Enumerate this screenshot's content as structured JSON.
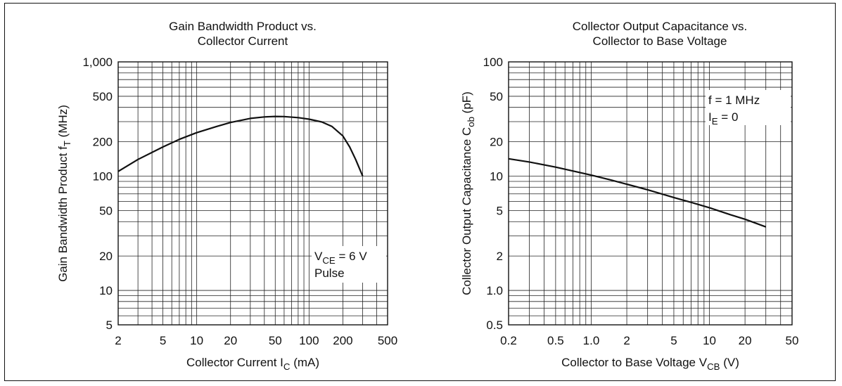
{
  "chart_data": [
    {
      "type": "line",
      "title": [
        "Gain Bandwidth Product vs.",
        "Collector Current"
      ],
      "xlabel": {
        "text": "Collector Current  I",
        "sub": "C",
        "tail": "  (mA)"
      },
      "ylabel": {
        "text": "Gain Bandwidth Product  f",
        "sub": "T",
        "tail": "  (MHz)"
      },
      "x_scale": "log",
      "y_scale": "log",
      "xlim": [
        2,
        500
      ],
      "ylim": [
        5,
        1000
      ],
      "x_ticks": [
        {
          "v": 2,
          "label": "2"
        },
        {
          "v": 5,
          "label": "5"
        },
        {
          "v": 10,
          "label": "10"
        },
        {
          "v": 20,
          "label": "20"
        },
        {
          "v": 50,
          "label": "50"
        },
        {
          "v": 100,
          "label": "100"
        },
        {
          "v": 200,
          "label": "200"
        },
        {
          "v": 500,
          "label": "500"
        }
      ],
      "y_ticks": [
        {
          "v": 5,
          "label": "5"
        },
        {
          "v": 10,
          "label": "10"
        },
        {
          "v": 20,
          "label": "20"
        },
        {
          "v": 50,
          "label": "50"
        },
        {
          "v": 100,
          "label": "100"
        },
        {
          "v": 200,
          "label": "200"
        },
        {
          "v": 500,
          "label": "500"
        },
        {
          "v": 1000,
          "label": "1,000"
        }
      ],
      "grid": true,
      "annotation": {
        "lines": [
          {
            "text": "V",
            "sub": "CE",
            "tail": " = 6 V"
          },
          {
            "text": "Pulse"
          }
        ],
        "position": "bottom-right"
      },
      "series": [
        {
          "x": [
            2,
            3,
            5,
            7,
            10,
            15,
            20,
            30,
            40,
            50,
            60,
            80,
            100,
            130,
            160,
            200,
            230,
            260,
            300
          ],
          "y": [
            110,
            140,
            180,
            210,
            240,
            272,
            295,
            320,
            330,
            333,
            332,
            325,
            315,
            298,
            272,
            225,
            180,
            140,
            100
          ]
        }
      ]
    },
    {
      "type": "line",
      "title": [
        "Collector Output Capacitance vs.",
        "Collector to Base Voltage"
      ],
      "xlabel": {
        "text": "Collector to Base Voltage  V",
        "sub": "CB",
        "tail": "  (V)"
      },
      "ylabel": {
        "text": "Collector Output Capacitance  C",
        "sub": "ob",
        "tail": "  (pF)"
      },
      "x_scale": "log",
      "y_scale": "log",
      "xlim": [
        0.2,
        50
      ],
      "ylim": [
        0.5,
        100
      ],
      "x_ticks": [
        {
          "v": 0.2,
          "label": "0.2"
        },
        {
          "v": 0.5,
          "label": "0.5"
        },
        {
          "v": 1,
          "label": "1.0"
        },
        {
          "v": 2,
          "label": "2"
        },
        {
          "v": 5,
          "label": "5"
        },
        {
          "v": 10,
          "label": "10"
        },
        {
          "v": 20,
          "label": "20"
        },
        {
          "v": 50,
          "label": "50"
        }
      ],
      "y_ticks": [
        {
          "v": 0.5,
          "label": "0.5"
        },
        {
          "v": 1,
          "label": "1.0"
        },
        {
          "v": 2,
          "label": "2"
        },
        {
          "v": 5,
          "label": "5"
        },
        {
          "v": 10,
          "label": "10"
        },
        {
          "v": 20,
          "label": "20"
        },
        {
          "v": 50,
          "label": "50"
        },
        {
          "v": 100,
          "label": "100"
        }
      ],
      "grid": true,
      "annotation": {
        "lines": [
          {
            "text": "f = 1 MHz"
          },
          {
            "text": "I",
            "sub": "E",
            "tail": " = 0"
          }
        ],
        "position": "top-right"
      },
      "series": [
        {
          "x": [
            0.2,
            0.3,
            0.5,
            0.7,
            1,
            1.5,
            2,
            3,
            5,
            7,
            10,
            15,
            20,
            30
          ],
          "y": [
            14.2,
            13.3,
            12.0,
            11.1,
            10.2,
            9.2,
            8.5,
            7.6,
            6.5,
            5.9,
            5.3,
            4.6,
            4.2,
            3.6
          ]
        }
      ]
    }
  ]
}
